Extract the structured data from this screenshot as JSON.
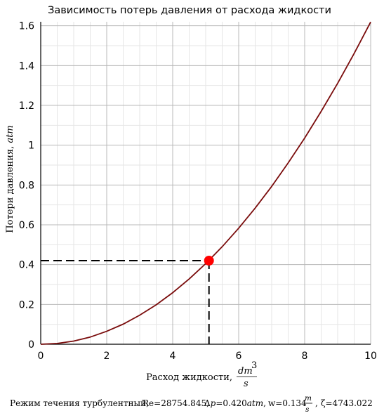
{
  "chart_data": {
    "type": "line",
    "title": "Зависимость потерь давления от расхода жидкости",
    "xlabel": "Расход жидкости, ",
    "xlabel_unit_num": "dm",
    "xlabel_unit_exp": "3",
    "xlabel_unit_den": "s",
    "ylabel": "Потери давления, ",
    "ylabel_unit": "atm",
    "xlim": [
      0,
      10
    ],
    "ylim": [
      0,
      1.62
    ],
    "x_ticks": [
      0,
      2,
      4,
      6,
      8,
      10
    ],
    "x_tick_labels": [
      "0",
      "2",
      "4",
      "6",
      "8",
      "10"
    ],
    "y_ticks": [
      0,
      0.2,
      0.4,
      0.6,
      0.8,
      1,
      1.2,
      1.4,
      1.6
    ],
    "y_tick_labels": [
      "0",
      "0.2",
      "0.4",
      "0.6",
      "0.8",
      "1",
      "1.2",
      "1.4",
      "1.6"
    ],
    "grid": true,
    "series": [
      {
        "color": "#7a0c0c",
        "x": [
          0,
          0.5,
          1,
          1.5,
          2,
          2.5,
          3,
          3.5,
          4,
          4.5,
          5,
          5.5,
          6,
          6.5,
          7,
          7.5,
          8,
          8.5,
          9,
          9.5,
          10
        ],
        "y": [
          0,
          0.004,
          0.016,
          0.036,
          0.065,
          0.101,
          0.146,
          0.198,
          0.259,
          0.328,
          0.405,
          0.49,
          0.583,
          0.684,
          0.793,
          0.911,
          1.036,
          1.17,
          1.311,
          1.461,
          1.619
        ]
      }
    ],
    "marker": {
      "x": 5.1,
      "y": 0.42,
      "color": "#ff0000"
    },
    "footer": {
      "regime": "Режим течения турбулентный,",
      "re": "Re=28754.845,",
      "dp_prefix": "Δ",
      "dp_var": "p",
      "dp_value": "=0.420",
      "dp_unit": "atm",
      "dp_sep": ",",
      "w_value": "w=0.134",
      "w_num": "m",
      "w_den": "s",
      "zeta": "ζ=4743.022"
    }
  }
}
